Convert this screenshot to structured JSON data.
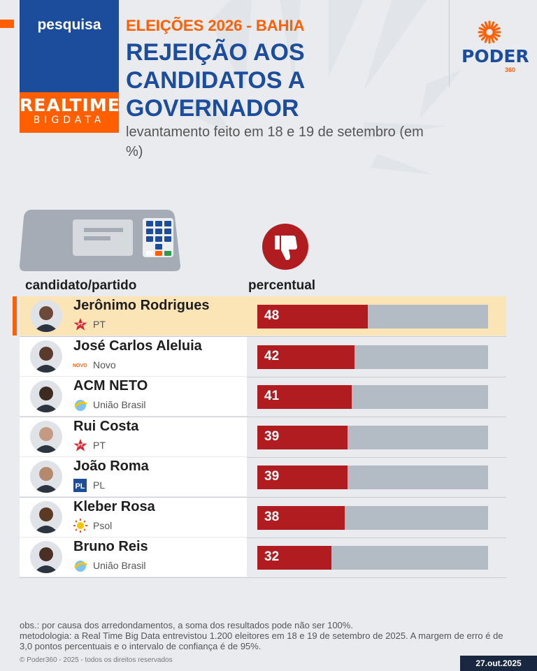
{
  "header": {
    "section_label": "pesquisa",
    "brand_line1": "REALTIME",
    "brand_line2": "BIGDATA",
    "eyebrow": "ELEIÇÕES 2026 - BAHIA",
    "title": "REJEIÇÃO AOS CANDIDATOS A GOVERNADOR",
    "subtitle": "levantamento feito em 18 e 19 de setembro (em %)",
    "logo_name": "PODER",
    "logo_number": "360"
  },
  "colors": {
    "brand_blue": "#1c4c9c",
    "brand_orange": "#ff5f00",
    "bar_value": "#b01c20",
    "bar_track": "#b3bcc4",
    "highlight_row": "#fbe5b7"
  },
  "icons": {
    "ballot_machine": "ballot-machine-icon",
    "thumbs_down": "thumbs-down-icon"
  },
  "columns": {
    "left": "candidato/partido",
    "right": "percentual"
  },
  "chart_data": {
    "type": "bar",
    "orientation": "horizontal",
    "title": "REJEIÇÃO AOS CANDIDATOS A GOVERNADOR",
    "ylim": [
      0,
      100
    ],
    "rows": [
      {
        "name": "Jerônimo Rodrigues",
        "party": "PT",
        "party_icon": "pt-star-icon",
        "value": 48,
        "highlight": true
      },
      {
        "name": "José Carlos Aleluia",
        "party": "Novo",
        "party_icon": "novo-logo-icon",
        "value": 42,
        "highlight": false
      },
      {
        "name": "ACM NETO",
        "party": "União Brasil",
        "party_icon": "uniao-brasil-icon",
        "value": 41,
        "highlight": false
      },
      {
        "name": "Rui Costa",
        "party": "PT",
        "party_icon": "pt-star-icon",
        "value": 39,
        "highlight": false
      },
      {
        "name": "João Roma",
        "party": "PL",
        "party_icon": "pl-logo-icon",
        "value": 39,
        "highlight": false
      },
      {
        "name": "Kleber Rosa",
        "party": "Psol",
        "party_icon": "psol-sun-icon",
        "value": 38,
        "highlight": false
      },
      {
        "name": "Bruno Reis",
        "party": "União Brasil",
        "party_icon": "uniao-brasil-icon",
        "value": 32,
        "highlight": false
      }
    ]
  },
  "footer": {
    "note1": "obs.: por causa dos arredondamentos, a soma dos resultados pode não ser 100%.",
    "note2": "metodologia: a Real Time Big Data entrevistou 1.200 eleitores em 18 e 19 de setembro de 2025. A margem de erro é de 3,0 pontos percentuais e o intervalo de confiança é de 95%.",
    "copyright": "© Poder360 - 2025 - todos os direitos reservados",
    "date": "27.out.2025"
  }
}
